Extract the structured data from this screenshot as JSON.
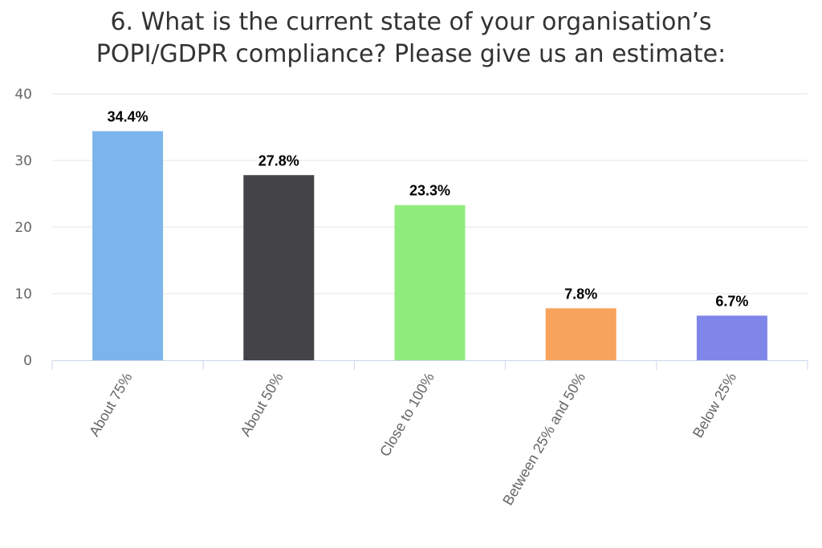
{
  "chart_data": {
    "type": "bar",
    "title_lines": [
      "6. What is the current state of your organisation’s",
      "POPI/GDPR compliance? Please give us an estimate:"
    ],
    "categories": [
      "About 75%",
      "About 50%",
      "Close to 100%",
      "Between 25% and 50%",
      "Below 25%"
    ],
    "values": [
      34.4,
      27.8,
      23.3,
      7.8,
      6.7
    ],
    "data_labels": [
      "34.4%",
      "27.8%",
      "23.3%",
      "7.8%",
      "6.7%"
    ],
    "colors": [
      "#7cb5ec",
      "#434348",
      "#90ed7d",
      "#f7a35c",
      "#8085e9"
    ],
    "ylim": [
      0,
      40
    ],
    "yticks": [
      0,
      10,
      20,
      30,
      40
    ],
    "xlabel": "",
    "ylabel": "",
    "grid": true,
    "legend": "none"
  }
}
